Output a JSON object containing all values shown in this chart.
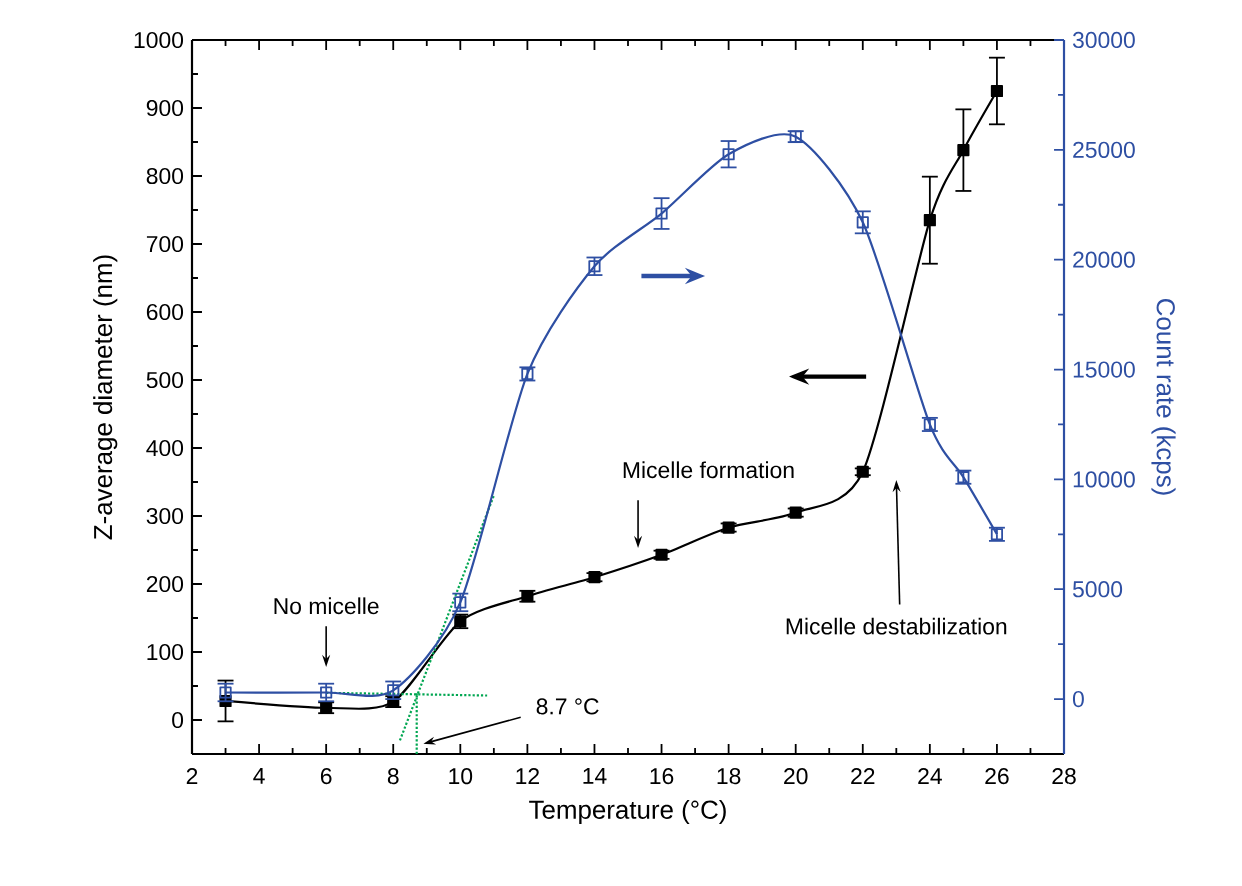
{
  "chart_data": {
    "type": "line",
    "xlabel": "Temperature (°C)",
    "ylabel": "Z-average diameter (nm)",
    "y2label": "Count rate (kcps)",
    "xlim": [
      2,
      28
    ],
    "xticks": [
      2,
      4,
      6,
      8,
      10,
      12,
      14,
      16,
      18,
      20,
      22,
      24,
      26,
      28
    ],
    "ylim": [
      -50,
      1000
    ],
    "yticks": [
      0,
      100,
      200,
      300,
      400,
      500,
      600,
      700,
      800,
      900,
      1000
    ],
    "y2lim": [
      -2500,
      30000
    ],
    "y2ticks": [
      0,
      5000,
      10000,
      15000,
      20000,
      25000,
      30000
    ],
    "marker": "square",
    "grid": false,
    "series": [
      {
        "color": "#000000",
        "x": [
          3,
          6,
          8,
          10,
          12,
          14,
          16,
          18,
          20,
          22,
          24,
          25,
          26
        ],
        "values": [
          28,
          18,
          27,
          145,
          182,
          210,
          243,
          283,
          305,
          365,
          735,
          838,
          925
        ],
        "errors": [
          30,
          8,
          8,
          10,
          8,
          6,
          6,
          6,
          6,
          5,
          64,
          60,
          49
        ]
      },
      {
        "color": "#2e4fa3",
        "axis": "y2",
        "x": [
          3,
          6,
          8,
          10,
          12,
          14,
          16,
          18,
          20,
          22,
          24,
          25,
          26
        ],
        "values": [
          300,
          300,
          400,
          4400,
          14800,
          19700,
          22100,
          24800,
          25600,
          21700,
          12500,
          10100,
          7500
        ],
        "errors": [
          400,
          400,
          400,
          400,
          300,
          400,
          700,
          600,
          250,
          500,
          300,
          300,
          300
        ]
      },
      {
        "color": "#00a651",
        "type": "line",
        "marker": "none",
        "line_style": "dotted",
        "x": [
          6,
          10.8
        ],
        "values": [
          40,
          36
        ]
      },
      {
        "color": "#00a651",
        "type": "line",
        "marker": "none",
        "line_style": "dotted",
        "x": [
          8.2,
          11
        ],
        "values": [
          -30,
          330
        ]
      },
      {
        "color": "#00a651",
        "type": "line",
        "marker": "none",
        "line_style": "dotted",
        "x": [
          8.7,
          8.7
        ],
        "values": [
          -50,
          40
        ]
      }
    ],
    "annotations": [
      "No micelle",
      "Micelle formation",
      "Micelle destabilization",
      "8.7 °C"
    ]
  }
}
